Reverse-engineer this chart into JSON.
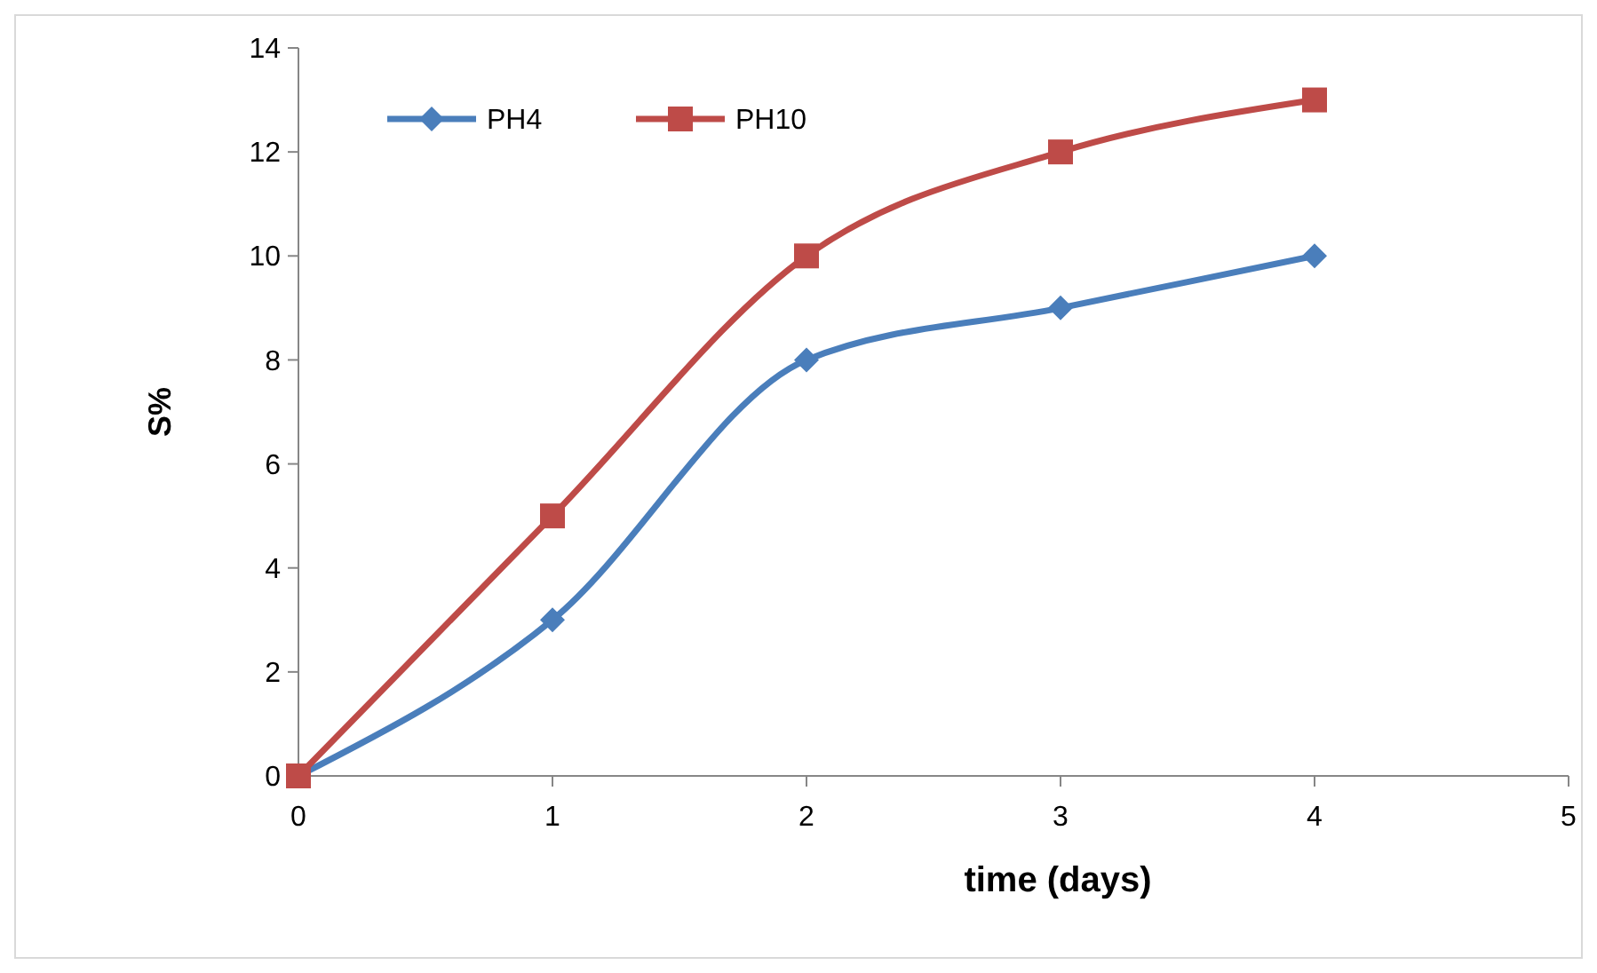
{
  "chart_data": {
    "type": "line",
    "xlabel": "time (days)",
    "ylabel": "S%",
    "x": [
      0,
      1,
      2,
      3,
      4
    ],
    "xlim": [
      0,
      5
    ],
    "xticks": [
      0,
      1,
      2,
      3,
      4,
      5
    ],
    "ylim": [
      0,
      14
    ],
    "yticks": [
      0,
      2,
      4,
      6,
      8,
      10,
      12,
      14
    ],
    "grid": false,
    "legend": "top left",
    "line_style": "solid",
    "series": [
      {
        "name": "PH4",
        "color": "#4a7ebb",
        "marker": "diamond",
        "values": [
          0,
          3,
          8,
          9,
          10
        ]
      },
      {
        "name": "PH10",
        "color": "#be4b48",
        "marker": "square",
        "values": [
          0,
          5,
          10,
          12,
          13
        ]
      }
    ]
  }
}
